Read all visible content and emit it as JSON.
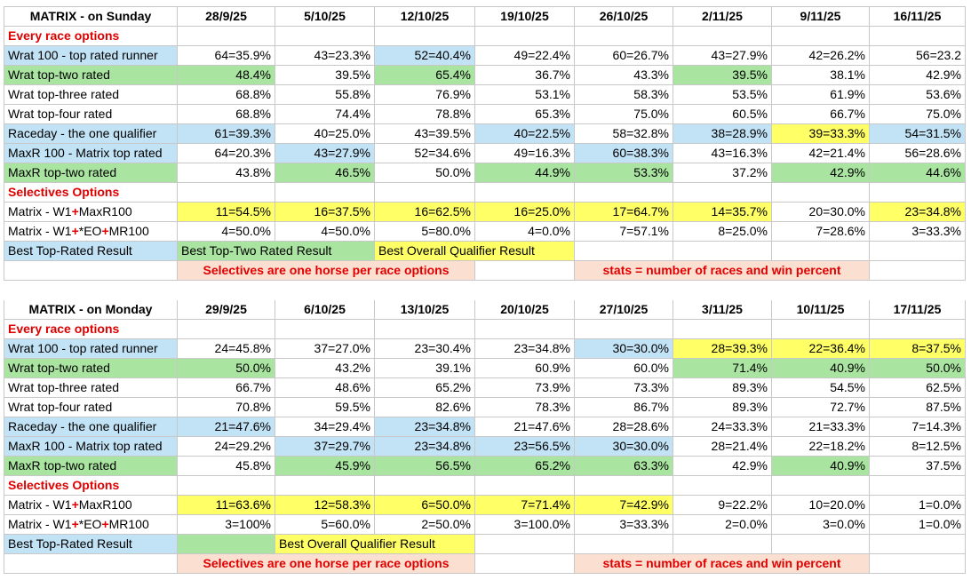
{
  "tables": [
    {
      "header": [
        "MATRIX - on Sunday",
        "28/9/25",
        "5/10/25",
        "12/10/25",
        "19/10/25",
        "26/10/25",
        "2/11/25",
        "9/11/25",
        "16/11/25"
      ],
      "rows": [
        {
          "label": [
            "Every race options"
          ]
        },
        {
          "label": [
            "Wrat 100 - top rated runner"
          ],
          "fill": "#c2e2f5",
          "cells": [
            "64=35.9%",
            "43=23.3%",
            "52=40.4%",
            "49=22.4%",
            "60=26.7%",
            "43=27.9%",
            "42=26.2%",
            "56=23.2"
          ],
          "fills": [
            null,
            null,
            "#c2e2f5",
            null,
            null,
            null,
            null,
            null
          ]
        },
        {
          "label": [
            "Wrat top-two rated"
          ],
          "fill": "#a9e4a0",
          "cells": [
            "48.4%",
            "39.5%",
            "65.4%",
            "36.7%",
            "43.3%",
            "39.5%",
            "38.1%",
            "42.9%"
          ],
          "fills": [
            "#a9e4a0",
            null,
            "#a9e4a0",
            null,
            null,
            "#a9e4a0",
            null,
            null
          ]
        },
        {
          "label": [
            "Wrat top-three rated"
          ],
          "cells": [
            "68.8%",
            "55.8%",
            "76.9%",
            "53.1%",
            "58.3%",
            "53.5%",
            "61.9%",
            "53.6%"
          ]
        },
        {
          "label": [
            "Wrat top-four rated"
          ],
          "cells": [
            "68.8%",
            "74.4%",
            "78.8%",
            "65.3%",
            "75.0%",
            "60.5%",
            "66.7%",
            "75.0%"
          ]
        },
        {
          "label": [
            "Raceday - the one qualifier"
          ],
          "fill": "#c2e2f5",
          "cells": [
            "61=39.3%",
            "40=25.0%",
            "43=39.5%",
            "40=22.5%",
            "58=32.8%",
            "38=28.9%",
            "39=33.3%",
            "54=31.5%"
          ],
          "fills": [
            "#c2e2f5",
            null,
            null,
            "#c2e2f5",
            null,
            "#c2e2f5",
            "#ffff66",
            "#c2e2f5"
          ]
        },
        {
          "label": [
            "MaxR 100 - Matrix top rated"
          ],
          "fill": "#c2e2f5",
          "cells": [
            "64=20.3%",
            "43=27.9%",
            "52=34.6%",
            "49=16.3%",
            "60=38.3%",
            "43=16.3%",
            "42=21.4%",
            "56=28.6%"
          ],
          "fills": [
            null,
            "#c2e2f5",
            null,
            null,
            "#c2e2f5",
            null,
            null,
            null
          ]
        },
        {
          "label": [
            "MaxR top-two rated"
          ],
          "fill": "#a9e4a0",
          "cells": [
            "43.8%",
            "46.5%",
            "50.0%",
            "44.9%",
            "53.3%",
            "37.2%",
            "42.9%",
            "44.6%"
          ],
          "fills": [
            null,
            "#a9e4a0",
            null,
            "#a9e4a0",
            "#a9e4a0",
            null,
            "#a9e4a0",
            "#a9e4a0"
          ]
        },
        {
          "label": [
            "Selectives Options"
          ]
        },
        {
          "label": [
            "Matrix - W1",
            "+",
            "MaxR100"
          ],
          "cells": [
            "11=54.5%",
            "16=37.5%",
            "16=62.5%",
            "16=25.0%",
            "17=64.7%",
            "14=35.7%",
            "20=30.0%",
            "23=34.8%"
          ],
          "fills": [
            "#ffff66",
            "#ffff66",
            "#ffff66",
            "#ffff66",
            "#ffff66",
            "#ffff66",
            null,
            "#ffff66"
          ]
        },
        {
          "label": [
            "Matrix - W1",
            "+",
            "*EO",
            "+",
            "MR100"
          ],
          "cells": [
            "4=50.0%",
            "4=50.0%",
            "5=80.0%",
            "4=0.0%",
            "7=57.1%",
            "8=25.0%",
            "7=28.6%",
            "3=33.3%"
          ]
        }
      ],
      "legend": {
        "label": "Best Top-Rated Result",
        "fill": "#c2e2f5",
        "items": [
          {
            "text": "Best Top-Two Rated Result",
            "fill": "#a9e4a0"
          },
          {
            "text": "Best Overall Qualifier Result",
            "fill": "#ffff66"
          }
        ]
      },
      "notes": [
        "Selectives are one horse per race options",
        "stats = number of races and win percent"
      ],
      "notes_fill": "#fbe0d2"
    },
    {
      "header": [
        "MATRIX - on Monday",
        "29/9/25",
        "6/10/25",
        "13/10/25",
        "20/10/25",
        "27/10/25",
        "3/11/25",
        "10/11/25",
        "17/11/25"
      ],
      "rows": [
        {
          "label": [
            "Every race options"
          ]
        },
        {
          "label": [
            "Wrat 100 - top rated runner"
          ],
          "fill": "#c2e2f5",
          "cells": [
            "24=45.8%",
            "37=27.0%",
            "23=30.4%",
            "23=34.8%",
            "30=30.0%",
            "28=39.3%",
            "22=36.4%",
            "8=37.5%"
          ],
          "fills": [
            null,
            null,
            null,
            null,
            "#c2e2f5",
            "#ffff66",
            "#ffff66",
            "#ffff66"
          ]
        },
        {
          "label": [
            "Wrat top-two rated"
          ],
          "fill": "#a9e4a0",
          "cells": [
            "50.0%",
            "43.2%",
            "39.1%",
            "60.9%",
            "60.0%",
            "71.4%",
            "40.9%",
            "50.0%"
          ],
          "fills": [
            "#a9e4a0",
            null,
            null,
            null,
            null,
            "#a9e4a0",
            "#a9e4a0",
            "#a9e4a0"
          ]
        },
        {
          "label": [
            "Wrat top-three rated"
          ],
          "cells": [
            "66.7%",
            "48.6%",
            "65.2%",
            "73.9%",
            "73.3%",
            "89.3%",
            "54.5%",
            "62.5%"
          ]
        },
        {
          "label": [
            "Wrat top-four rated"
          ],
          "cells": [
            "70.8%",
            "59.5%",
            "82.6%",
            "78.3%",
            "86.7%",
            "89.3%",
            "72.7%",
            "87.5%"
          ]
        },
        {
          "label": [
            "Raceday - the one qualifier"
          ],
          "fill": "#c2e2f5",
          "cells": [
            "21=47.6%",
            "34=29.4%",
            "23=34.8%",
            "21=47.6%",
            "28=28.6%",
            "24=33.3%",
            "21=33.3%",
            "7=14.3%"
          ],
          "fills": [
            "#c2e2f5",
            null,
            "#c2e2f5",
            null,
            null,
            null,
            null,
            null
          ]
        },
        {
          "label": [
            "MaxR 100 - Matrix top rated"
          ],
          "fill": "#c2e2f5",
          "cells": [
            "24=29.2%",
            "37=29.7%",
            "23=34.8%",
            "23=56.5%",
            "30=30.0%",
            "28=21.4%",
            "22=18.2%",
            "8=12.5%"
          ],
          "fills": [
            null,
            "#c2e2f5",
            "#c2e2f5",
            "#c2e2f5",
            "#c2e2f5",
            null,
            null,
            null
          ]
        },
        {
          "label": [
            "MaxR top-two rated"
          ],
          "fill": "#a9e4a0",
          "cells": [
            "45.8%",
            "45.9%",
            "56.5%",
            "65.2%",
            "63.3%",
            "42.9%",
            "40.9%",
            "37.5%"
          ],
          "fills": [
            null,
            "#a9e4a0",
            "#a9e4a0",
            "#a9e4a0",
            "#a9e4a0",
            null,
            "#a9e4a0",
            null
          ]
        },
        {
          "label": [
            "Selectives Options"
          ]
        },
        {
          "label": [
            "Matrix - W1",
            "+",
            "MaxR100"
          ],
          "cells": [
            "11=63.6%",
            "12=58.3%",
            "6=50.0%",
            "7=71.4%",
            "7=42.9%",
            "9=22.2%",
            "10=20.0%",
            "1=0.0%"
          ],
          "fills": [
            "#ffff66",
            "#ffff66",
            "#ffff66",
            "#ffff66",
            "#ffff66",
            null,
            null,
            null
          ]
        },
        {
          "label": [
            "Matrix - W1",
            "+",
            "*EO",
            "+",
            "MR100"
          ],
          "cells": [
            "3=100%",
            "5=60.0%",
            "2=50.0%",
            "3=100.0%",
            "3=33.3%",
            "2=0.0%",
            "3=0.0%",
            "1=0.0%"
          ]
        }
      ],
      "legend": {
        "label": "Best Top-Rated Result",
        "fill": "#c2e2f5",
        "items": [
          {
            "text": "Best Overall Qualifier Result",
            "fill": "#ffff66"
          }
        ]
      },
      "notes": [
        "Selectives are one horse per race options",
        "stats = number of races and win percent"
      ],
      "notes_fill": "#fbe0d2"
    }
  ]
}
